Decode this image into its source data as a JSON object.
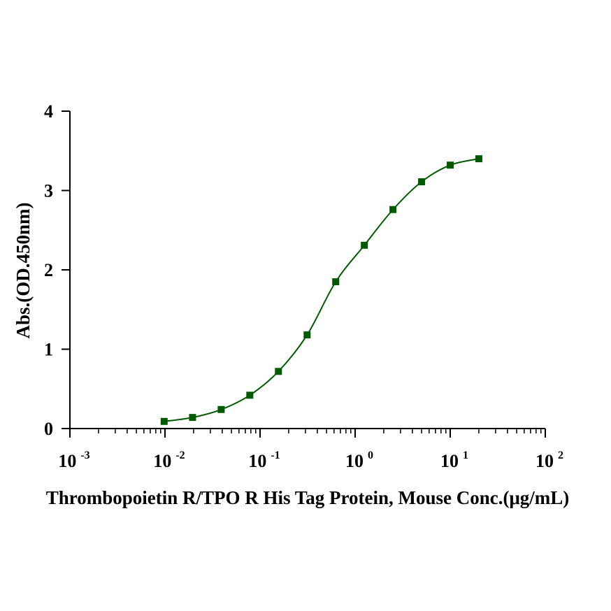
{
  "chart_data": {
    "type": "scatter",
    "xlabel": "Thrombopoietin R/TPO R His Tag Protein, Mouse Conc.(μg/mL)",
    "ylabel": "Abs.(OD.450nm)",
    "x_scale": "log10",
    "xlim": [
      0.001,
      100
    ],
    "ylim": [
      0,
      4
    ],
    "x_ticks": [
      {
        "base": "10",
        "exp": "-3"
      },
      {
        "base": "10",
        "exp": "-2"
      },
      {
        "base": "10",
        "exp": "-1"
      },
      {
        "base": "10",
        "exp": "0"
      },
      {
        "base": "10",
        "exp": "1"
      },
      {
        "base": "10",
        "exp": "2"
      }
    ],
    "y_ticks": [
      "0",
      "1",
      "2",
      "3",
      "4"
    ],
    "grid": false,
    "series": [
      {
        "color": "#005a00",
        "marker": "square",
        "fit": "4PL",
        "x": [
          0.0098,
          0.0195,
          0.039,
          0.078,
          0.156,
          0.3125,
          0.625,
          1.25,
          2.5,
          5,
          10,
          20
        ],
        "y": [
          0.09,
          0.14,
          0.24,
          0.42,
          0.72,
          1.18,
          1.85,
          2.31,
          2.76,
          3.11,
          3.32,
          3.4
        ]
      }
    ]
  }
}
